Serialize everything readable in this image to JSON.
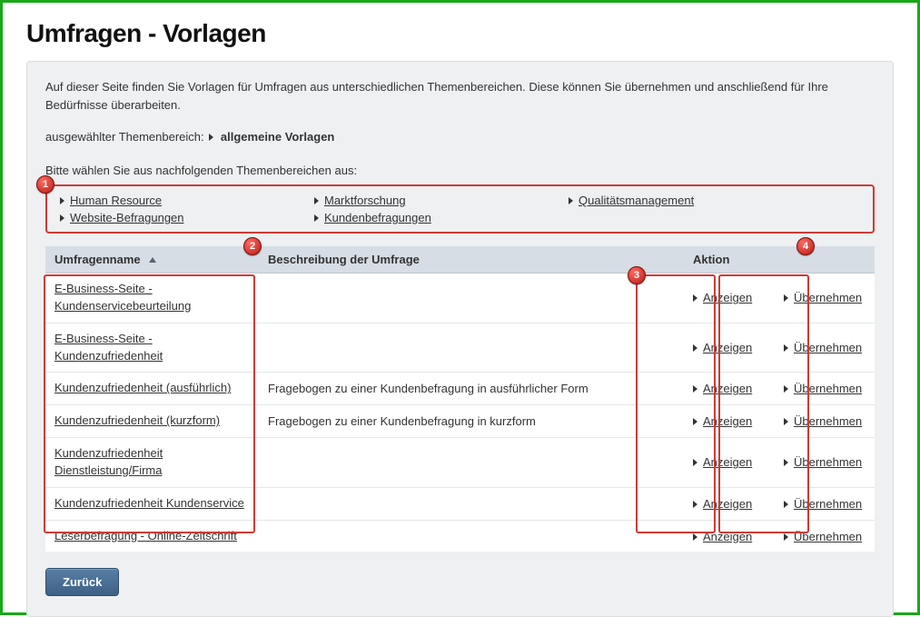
{
  "page": {
    "title": "Umfragen - Vorlagen",
    "intro": "Auf dieser Seite finden Sie Vorlagen für Umfragen aus unterschiedlichen Themenbereichen. Diese können Sie übernehmen und anschließend für Ihre Bedürfnisse überarbeiten.",
    "selected_prefix": "ausgewählter Themenbereich:",
    "selected_value": "allgemeine Vorlagen",
    "choose_prompt": "Bitte wählen Sie aus nachfolgenden Themenbereichen aus:",
    "back_label": "Zurück"
  },
  "topics": {
    "col1": [
      "Human Resource",
      "Website-Befragungen"
    ],
    "col2": [
      "Marktforschung",
      "Kundenbefragungen"
    ],
    "col3": [
      "Qualitätsmanagement"
    ]
  },
  "callouts": {
    "b1": "1",
    "b2": "2",
    "b3": "3",
    "b4": "4"
  },
  "table": {
    "headers": {
      "name": "Umfragenname",
      "desc": "Beschreibung der Umfrage",
      "action": "Aktion"
    },
    "action_show": "Anzeigen",
    "action_take": "Übernehmen",
    "rows": [
      {
        "name": "E-Business-Seite - Kundenservicebeurteilung",
        "desc": ""
      },
      {
        "name": "E-Business-Seite - Kundenzufriedenheit",
        "desc": ""
      },
      {
        "name": "Kundenzufriedenheit (ausführlich)",
        "desc": "Fragebogen zu einer Kundenbefragung in ausführlicher Form"
      },
      {
        "name": "Kundenzufriedenheit (kurzform)",
        "desc": "Fragebogen zu einer Kundenbefragung in kurzform"
      },
      {
        "name": "Kundenzufriedenheit Dienstleistung/Firma",
        "desc": ""
      },
      {
        "name": "Kundenzufriedenheit Kundenservice",
        "desc": ""
      },
      {
        "name": "Leserbefragung - Online-Zeitschrift",
        "desc": ""
      }
    ]
  },
  "colors": {
    "page_border": "#18a818",
    "panel_bg": "#eef0f2",
    "panel_border": "#d9dde1",
    "callout_border": "#cc3b36",
    "th_bg": "#d6dde4",
    "row_border": "#e3e6ea",
    "btn_top": "#5a7fa6",
    "btn_bottom": "#3d6185",
    "text": "#333333"
  }
}
